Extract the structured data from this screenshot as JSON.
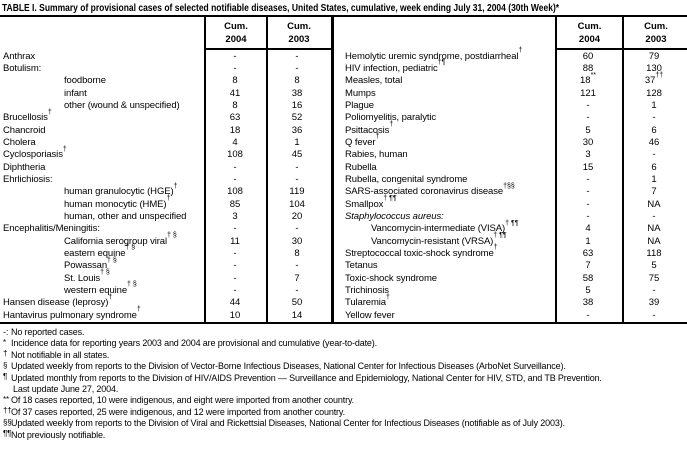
{
  "title": "TABLE I. Summary of provisional cases of selected notifiable diseases, United States, cumulative, week ending July 31, 2004 (30th Week)*",
  "column_headers": [
    {
      "line1": "Cum.",
      "line2": "2004"
    },
    {
      "line1": "Cum.",
      "line2": "2003"
    },
    {
      "line1": "Cum.",
      "line2": "2004"
    },
    {
      "line1": "Cum.",
      "line2": "2003"
    }
  ],
  "left_rows": [
    {
      "label": "Anthrax",
      "v1": "-",
      "v2": "-"
    },
    {
      "label": "Botulism:",
      "v1": "-",
      "v2": "-"
    },
    {
      "label": "foodborne",
      "indent": true,
      "v1": "8",
      "v2": "8"
    },
    {
      "label": "infant",
      "indent": true,
      "v1": "41",
      "v2": "38"
    },
    {
      "label": "other (wound & unspecified)",
      "indent": true,
      "v1": "8",
      "v2": "16"
    },
    {
      "label": "Brucellosis",
      "sup": "†",
      "v1": "63",
      "v2": "52"
    },
    {
      "label": "Chancroid",
      "v1": "18",
      "v2": "36"
    },
    {
      "label": "Cholera",
      "v1": "4",
      "v2": "1"
    },
    {
      "label": "Cyclosporiasis",
      "sup": "†",
      "v1": "108",
      "v2": "45"
    },
    {
      "label": "Diphtheria",
      "v1": "-",
      "v2": "-"
    },
    {
      "label": "Ehrlichiosis:",
      "v1": "-",
      "v2": "-"
    },
    {
      "label": "human granulocytic (HGE)",
      "sup": "†",
      "indent": true,
      "v1": "108",
      "v2": "119"
    },
    {
      "label": "human monocytic (HME)",
      "sup": "†",
      "indent": true,
      "v1": "85",
      "v2": "104"
    },
    {
      "label": "human, other and unspecified",
      "indent": true,
      "v1": "3",
      "v2": "20"
    },
    {
      "label": "Encephalitis/Meningitis:",
      "v1": "-",
      "v2": "-"
    },
    {
      "label": "California serogroup viral",
      "sup": "† §",
      "indent": true,
      "v1": "11",
      "v2": "30"
    },
    {
      "label": "eastern equine",
      "sup": "† §",
      "indent": true,
      "v1": "-",
      "v2": "8"
    },
    {
      "label": "Powassan",
      "sup": "† §",
      "indent": true,
      "v1": "-",
      "v2": "-"
    },
    {
      "label": "St. Louis",
      "sup": "† §",
      "indent": true,
      "v1": "-",
      "v2": "7"
    },
    {
      "label": "western equine",
      "sup": "† §",
      "indent": true,
      "v1": "-",
      "v2": "-"
    },
    {
      "label": "Hansen disease (leprosy)",
      "sup": "†",
      "v1": "44",
      "v2": "50"
    },
    {
      "label": "Hantavirus pulmonary syndrome",
      "sup": "†",
      "v1": "10",
      "v2": "14"
    }
  ],
  "right_rows": [
    {
      "label": "Hemolytic uremic syndrome, postdiarrheal",
      "sup": "†",
      "v1": "60",
      "v2": "79"
    },
    {
      "label": "HIV infection, pediatric",
      "sup": "†¶",
      "v1": "88",
      "v2": "130"
    },
    {
      "label": "Measles, total",
      "v1": "18",
      "v1sup": "**",
      "v2": "37",
      "v2sup": "††"
    },
    {
      "label": "Mumps",
      "v1": "121",
      "v2": "128"
    },
    {
      "label": "Plague",
      "v1": "-",
      "v2": "1"
    },
    {
      "label": "Poliomyelitis, paralytic",
      "v1": "-",
      "v2": "-"
    },
    {
      "label": "Psittacosis",
      "sup": "†",
      "v1": "5",
      "v2": "6"
    },
    {
      "label": "Q fever",
      "sup": "†",
      "v1": "30",
      "v2": "46"
    },
    {
      "label": "Rabies, human",
      "v1": "3",
      "v2": "-"
    },
    {
      "label": "Rubella",
      "v1": "15",
      "v2": "6"
    },
    {
      "label": "Rubella, congenital syndrome",
      "v1": "-",
      "v2": "1"
    },
    {
      "label": "SARS-associated coronavirus disease",
      "sup": "†§§",
      "v1": "-",
      "v2": "7"
    },
    {
      "label": "Smallpox",
      "sup": "† ¶¶",
      "v1": "-",
      "v2": "NA"
    },
    {
      "label": "Staphylococcus aureus:",
      "italic": true,
      "v1": "-",
      "v2": "-"
    },
    {
      "label": "Vancomycin-intermediate (VISA)",
      "sup": "† ¶¶",
      "indent": true,
      "v1": "4",
      "v2": "NA"
    },
    {
      "label": "Vancomycin-resistant (VRSA)",
      "sup": "† ¶¶",
      "indent": true,
      "v1": "1",
      "v2": "NA"
    },
    {
      "label": "Streptococcal toxic-shock syndrome",
      "sup": "†",
      "v1": "63",
      "v2": "118"
    },
    {
      "label": "Tetanus",
      "v1": "7",
      "v2": "5"
    },
    {
      "label": "Toxic-shock syndrome",
      "v1": "58",
      "v2": "75"
    },
    {
      "label": "Trichinosis",
      "v1": "5",
      "v2": "-"
    },
    {
      "label": "Tularemia",
      "sup": "†",
      "v1": "38",
      "v2": "39"
    },
    {
      "label": "Yellow fever",
      "v1": "-",
      "v2": "-"
    }
  ],
  "footnotes": [
    {
      "marker": "-:",
      "sup": false,
      "text": "No reported cases."
    },
    {
      "marker": "*",
      "sup": true,
      "text": "Incidence data for reporting years 2003 and 2004 are provisional and cumulative (year-to-date)."
    },
    {
      "marker": "†",
      "sup": true,
      "text": "Not notifiable in all states."
    },
    {
      "marker": "§",
      "sup": true,
      "text": "Updated weekly from reports to the Division of Vector-Borne Infectious Diseases, National Center for Infectious Diseases (ArboNet Surveillance)."
    },
    {
      "marker": "¶",
      "sup": true,
      "text": "Updated monthly from reports to the Division of HIV/AIDS Prevention — Surveillance and Epidemiology, National Center for HIV, STD, and TB Prevention."
    },
    {
      "marker": "",
      "sup": false,
      "indent": true,
      "text": "Last update June 27, 2004."
    },
    {
      "marker": "**",
      "sup": true,
      "text": "Of 18 cases reported, 10 were indigenous, and eight were imported from another country."
    },
    {
      "marker": "††",
      "sup": true,
      "text": "Of 37 cases reported, 25 were indigenous, and 12 were imported from another country."
    },
    {
      "marker": "§§",
      "sup": true,
      "text": "Updated weekly from reports to the Division of Viral and Rickettsial Diseases, National Center for Infectious Diseases (notifiable as of July 2003)."
    },
    {
      "marker": "¶¶",
      "sup": true,
      "text": "Not previously notifiable."
    }
  ]
}
